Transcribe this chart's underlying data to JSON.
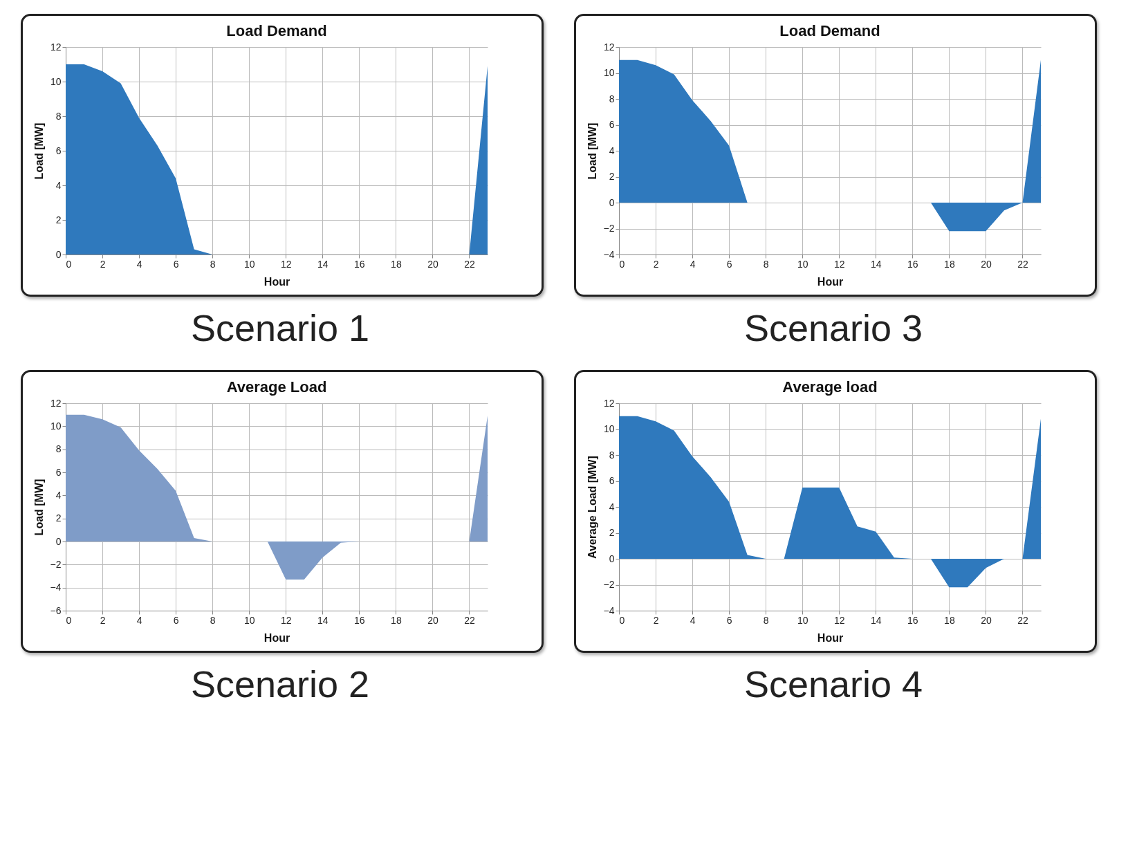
{
  "chart_data": [
    {
      "type": "area",
      "title": "Load Demand",
      "xlabel": "Hour",
      "ylabel": "Load [MW]",
      "x": [
        0,
        1,
        2,
        3,
        4,
        5,
        6,
        7,
        8,
        9,
        10,
        11,
        12,
        13,
        14,
        15,
        16,
        17,
        18,
        19,
        20,
        21,
        22,
        23
      ],
      "color": "#2f79bd",
      "values": [
        11,
        11,
        10.6,
        9.9,
        7.9,
        6.3,
        4.4,
        0.3,
        0,
        0,
        0,
        0,
        0,
        0,
        0,
        0,
        0,
        0,
        0,
        0,
        0,
        0,
        0,
        10.9
      ],
      "xlim": [
        0,
        23
      ],
      "xticks": [
        0,
        2,
        4,
        6,
        8,
        10,
        12,
        14,
        16,
        18,
        20,
        22
      ],
      "ylim": [
        0,
        12
      ],
      "yticks": [
        0,
        2,
        4,
        6,
        8,
        10,
        12
      ],
      "grid": true,
      "annotations": [
        "Scenario 1"
      ]
    },
    {
      "type": "area",
      "title": "Load Demand",
      "xlabel": "Hour",
      "ylabel": "Load [MW]",
      "x": [
        0,
        1,
        2,
        3,
        4,
        5,
        6,
        7,
        8,
        9,
        10,
        11,
        12,
        13,
        14,
        15,
        16,
        17,
        18,
        19,
        20,
        21,
        22,
        23
      ],
      "color": "#2f79bd",
      "values": [
        11,
        11,
        10.6,
        9.9,
        7.9,
        6.3,
        4.4,
        0,
        0,
        0,
        0,
        0,
        0,
        0,
        0,
        0,
        0,
        0,
        -2.2,
        -2.2,
        -2.2,
        -0.6,
        0,
        11
      ],
      "xlim": [
        0,
        23
      ],
      "xticks": [
        0,
        2,
        4,
        6,
        8,
        10,
        12,
        14,
        16,
        18,
        20,
        22
      ],
      "ylim": [
        -4,
        12
      ],
      "yticks": [
        -4,
        -2,
        0,
        2,
        4,
        6,
        8,
        10,
        12
      ],
      "grid": true,
      "annotations": [
        "Scenario 3"
      ]
    },
    {
      "type": "area",
      "title": "Average Load",
      "xlabel": "Hour",
      "ylabel": "Load [MW]",
      "x": [
        0,
        1,
        2,
        3,
        4,
        5,
        6,
        7,
        8,
        9,
        10,
        11,
        12,
        13,
        14,
        15,
        16,
        17,
        18,
        19,
        20,
        21,
        22,
        23
      ],
      "color": "#7f9cc8",
      "values": [
        11,
        11,
        10.6,
        9.9,
        7.9,
        6.3,
        4.4,
        0.3,
        0,
        0,
        0,
        0,
        -3.3,
        -3.3,
        -1.4,
        -0.1,
        0,
        0,
        0,
        0,
        0,
        0,
        0,
        10.9
      ],
      "xlim": [
        0,
        23
      ],
      "xticks": [
        0,
        2,
        4,
        6,
        8,
        10,
        12,
        14,
        16,
        18,
        20,
        22
      ],
      "ylim": [
        -6,
        12
      ],
      "yticks": [
        -6,
        -4,
        -2,
        0,
        2,
        4,
        6,
        8,
        10,
        12
      ],
      "grid": true,
      "annotations": [
        "Scenario 2"
      ]
    },
    {
      "type": "area",
      "title": "Average load",
      "xlabel": "Hour",
      "ylabel": "Average Load [MW]",
      "x": [
        0,
        1,
        2,
        3,
        4,
        5,
        6,
        7,
        8,
        9,
        10,
        11,
        12,
        13,
        14,
        15,
        16,
        17,
        18,
        19,
        20,
        21,
        22,
        23
      ],
      "color": "#2f79bd",
      "values": [
        11,
        11,
        10.6,
        9.9,
        7.9,
        6.3,
        4.4,
        0.3,
        0,
        0,
        5.5,
        5.5,
        5.5,
        2.5,
        2.1,
        0.1,
        0,
        0,
        -2.2,
        -2.2,
        -0.7,
        0,
        0,
        10.8
      ],
      "xlim": [
        0,
        23
      ],
      "xticks": [
        0,
        2,
        4,
        6,
        8,
        10,
        12,
        14,
        16,
        18,
        20,
        22
      ],
      "ylim": [
        -4,
        12
      ],
      "yticks": [
        -4,
        -2,
        0,
        2,
        4,
        6,
        8,
        10,
        12
      ],
      "grid": true,
      "annotations": [
        "Scenario 4"
      ]
    }
  ]
}
